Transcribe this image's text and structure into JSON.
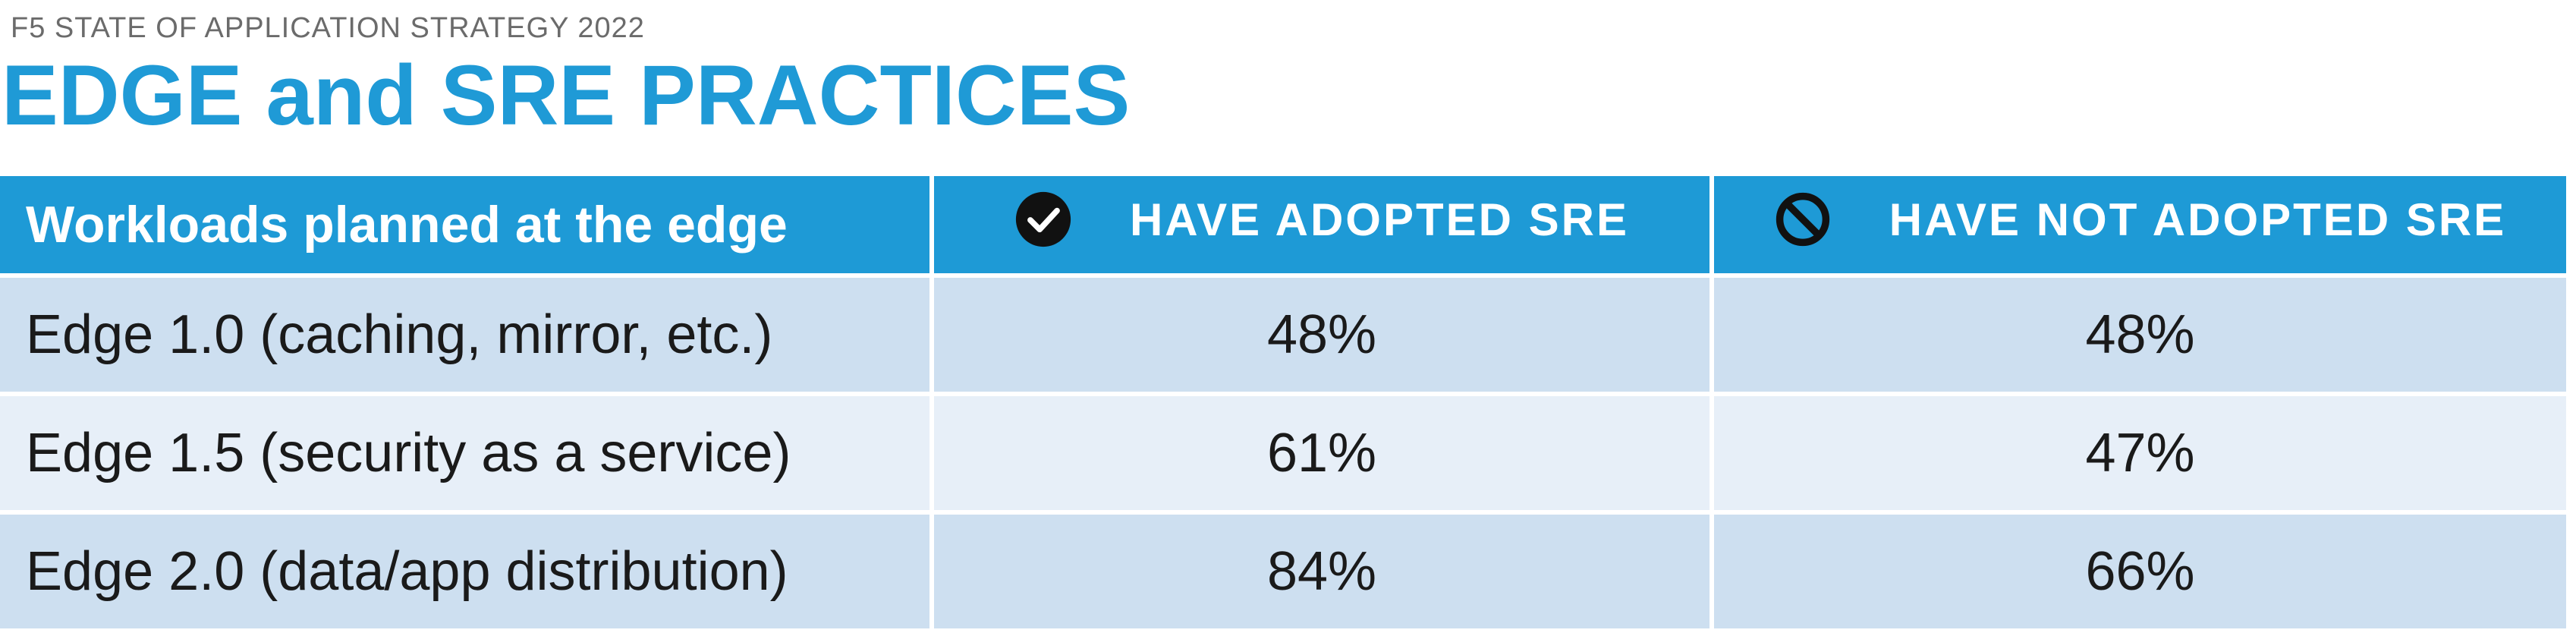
{
  "header": {
    "kicker": "F5 STATE OF APPLICATION STRATEGY 2022",
    "title": "EDGE and SRE PRACTICES"
  },
  "table": {
    "columns": [
      "Workloads planned at the edge",
      "HAVE ADOPTED SRE",
      "HAVE NOT ADOPTED SRE"
    ],
    "rows": [
      [
        "Edge 1.0 (caching, mirror, etc.)",
        "48%",
        "48%"
      ],
      [
        "Edge 1.5 (security as a service)",
        "61%",
        "47%"
      ],
      [
        "Edge 2.0 (data/app distribution)",
        "84%",
        "66%"
      ]
    ]
  }
}
